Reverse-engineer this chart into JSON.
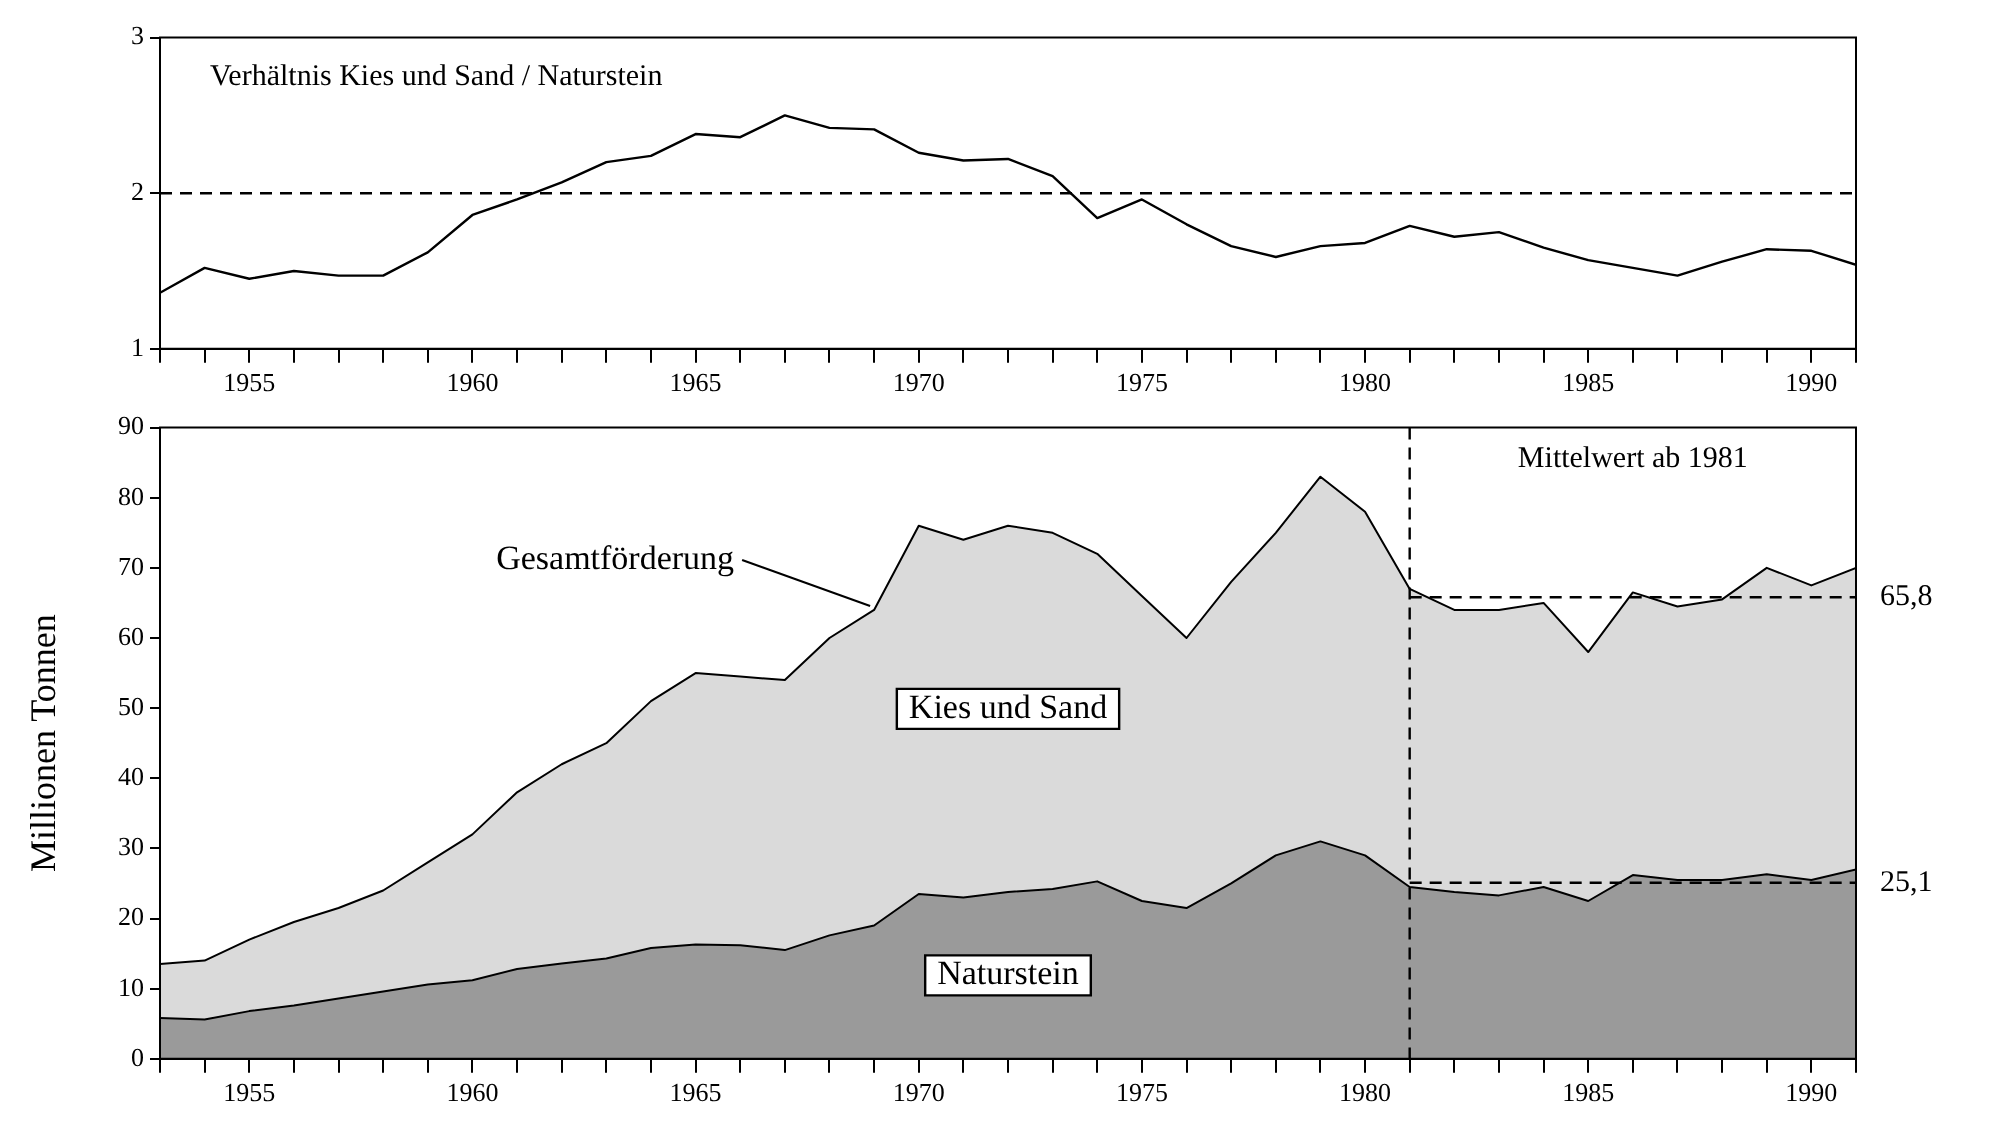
{
  "chart_data": [
    {
      "type": "line",
      "title": "Verhältnis Kies und Sand / Naturstein",
      "color": "#000000",
      "x": [
        1953,
        1954,
        1955,
        1956,
        1957,
        1958,
        1959,
        1960,
        1961,
        1962,
        1963,
        1964,
        1965,
        1966,
        1967,
        1968,
        1969,
        1970,
        1971,
        1972,
        1973,
        1974,
        1975,
        1976,
        1977,
        1978,
        1979,
        1980,
        1981,
        1982,
        1983,
        1984,
        1985,
        1986,
        1987,
        1988,
        1989,
        1990,
        1991
      ],
      "values": [
        1.36,
        1.52,
        1.45,
        1.5,
        1.47,
        1.47,
        1.62,
        1.86,
        1.96,
        2.07,
        2.2,
        2.24,
        2.38,
        2.36,
        2.5,
        2.42,
        2.41,
        2.26,
        2.21,
        2.22,
        2.11,
        1.84,
        1.96,
        1.8,
        1.66,
        1.59,
        1.66,
        1.68,
        1.79,
        1.72,
        1.75,
        1.65,
        1.57,
        1.52,
        1.47,
        1.56,
        1.64,
        1.63,
        1.54
      ],
      "xlim": [
        1953,
        1991
      ],
      "xticks": [
        {
          "value": 1953,
          "label": null
        },
        {
          "value": 1954,
          "label": null
        },
        1955,
        {
          "value": 1956,
          "label": null
        },
        {
          "value": 1957,
          "label": null
        },
        {
          "value": 1958,
          "label": null
        },
        {
          "value": 1959,
          "label": null
        },
        1960,
        {
          "value": 1961,
          "label": null
        },
        {
          "value": 1962,
          "label": null
        },
        {
          "value": 1963,
          "label": null
        },
        {
          "value": 1964,
          "label": null
        },
        1965,
        {
          "value": 1966,
          "label": null
        },
        {
          "value": 1967,
          "label": null
        },
        {
          "value": 1968,
          "label": null
        },
        {
          "value": 1969,
          "label": null
        },
        1970,
        {
          "value": 1971,
          "label": null
        },
        {
          "value": 1972,
          "label": null
        },
        {
          "value": 1973,
          "label": null
        },
        {
          "value": 1974,
          "label": null
        },
        1975,
        {
          "value": 1976,
          "label": null
        },
        {
          "value": 1977,
          "label": null
        },
        {
          "value": 1978,
          "label": null
        },
        {
          "value": 1979,
          "label": null
        },
        1980,
        {
          "value": 1981,
          "label": null
        },
        {
          "value": 1982,
          "label": null
        },
        {
          "value": 1983,
          "label": null
        },
        {
          "value": 1984,
          "label": null
        },
        1985,
        {
          "value": 1986,
          "label": null
        },
        {
          "value": 1987,
          "label": null
        },
        {
          "value": 1988,
          "label": null
        },
        {
          "value": 1989,
          "label": null
        },
        1990,
        {
          "value": 1991,
          "label": null
        }
      ],
      "ylim": [
        1,
        3
      ],
      "yticks": [
        1,
        2,
        3
      ],
      "ref_lines": [
        {
          "axis": "y",
          "value": 2,
          "line_style": "dashed"
        }
      ]
    },
    {
      "type": "area",
      "stacked": true,
      "ylabel": "Millionen Tonnen",
      "x": [
        1953,
        1954,
        1955,
        1956,
        1957,
        1958,
        1959,
        1960,
        1961,
        1962,
        1963,
        1964,
        1965,
        1966,
        1967,
        1968,
        1969,
        1970,
        1971,
        1972,
        1973,
        1974,
        1975,
        1976,
        1977,
        1978,
        1979,
        1980,
        1981,
        1982,
        1983,
        1984,
        1985,
        1986,
        1987,
        1988,
        1989,
        1990,
        1991
      ],
      "series": [
        {
          "name": "Naturstein",
          "color": "#9a9a9a",
          "values": [
            5.8,
            5.6,
            6.8,
            7.6,
            8.6,
            9.6,
            10.6,
            11.2,
            12.8,
            13.6,
            14.3,
            15.8,
            16.3,
            16.2,
            15.5,
            17.6,
            19,
            23.5,
            23,
            23.8,
            24.2,
            25.3,
            22.5,
            21.5,
            25,
            29,
            31,
            29,
            24.5,
            23.8,
            23.3,
            24.5,
            22.5,
            26.2,
            25.5,
            25.5,
            26.3,
            25.5,
            27
          ]
        },
        {
          "name": "Kies und Sand",
          "color": "#dadada",
          "values": [
            7.7,
            8.4,
            10.2,
            11.9,
            12.9,
            14.4,
            17.4,
            20.8,
            25.2,
            28.4,
            30.7,
            35.2,
            38.7,
            38.3,
            38.5,
            42.4,
            45,
            52.5,
            51,
            52.2,
            50.8,
            46.7,
            43.5,
            38.5,
            43,
            46,
            52,
            49,
            42.5,
            40.2,
            40.7,
            40.5,
            35.5,
            40.3,
            39,
            40,
            43.7,
            42,
            43
          ]
        }
      ],
      "xlim": [
        1953,
        1991
      ],
      "xticks": [
        {
          "value": 1953,
          "label": null
        },
        {
          "value": 1954,
          "label": null
        },
        1955,
        {
          "value": 1956,
          "label": null
        },
        {
          "value": 1957,
          "label": null
        },
        {
          "value": 1958,
          "label": null
        },
        {
          "value": 1959,
          "label": null
        },
        1960,
        {
          "value": 1961,
          "label": null
        },
        {
          "value": 1962,
          "label": null
        },
        {
          "value": 1963,
          "label": null
        },
        {
          "value": 1964,
          "label": null
        },
        1965,
        {
          "value": 1966,
          "label": null
        },
        {
          "value": 1967,
          "label": null
        },
        {
          "value": 1968,
          "label": null
        },
        {
          "value": 1969,
          "label": null
        },
        1970,
        {
          "value": 1971,
          "label": null
        },
        {
          "value": 1972,
          "label": null
        },
        {
          "value": 1973,
          "label": null
        },
        {
          "value": 1974,
          "label": null
        },
        1975,
        {
          "value": 1976,
          "label": null
        },
        {
          "value": 1977,
          "label": null
        },
        {
          "value": 1978,
          "label": null
        },
        {
          "value": 1979,
          "label": null
        },
        1980,
        {
          "value": 1981,
          "label": null
        },
        {
          "value": 1982,
          "label": null
        },
        {
          "value": 1983,
          "label": null
        },
        {
          "value": 1984,
          "label": null
        },
        1985,
        {
          "value": 1986,
          "label": null
        },
        {
          "value": 1987,
          "label": null
        },
        {
          "value": 1988,
          "label": null
        },
        {
          "value": 1989,
          "label": null
        },
        1990,
        {
          "value": 1991,
          "label": null
        }
      ],
      "ylim": [
        0,
        90
      ],
      "yticks": [
        0,
        10,
        20,
        30,
        40,
        50,
        60,
        70,
        80,
        90
      ],
      "ref_lines": [
        {
          "axis": "x",
          "value": 1981,
          "line_style": "dashed"
        },
        {
          "axis": "y",
          "value": 65.8,
          "label": "65,8",
          "line_style": "dashed"
        },
        {
          "axis": "y",
          "value": 25.1,
          "label": "25,1",
          "line_style": "dashed"
        }
      ],
      "annotations": [
        "Mittelwert ab 1981",
        {
          "text": "Gesamtförderung",
          "x": 1969,
          "y": 64
        }
      ]
    }
  ]
}
